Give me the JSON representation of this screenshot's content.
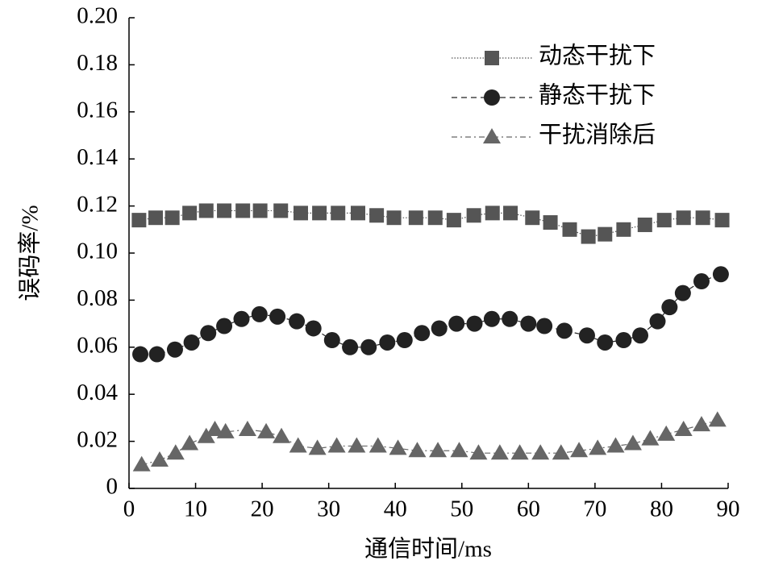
{
  "chart_data": {
    "type": "line",
    "xlabel": "通信时间/ms",
    "ylabel": "误码率/%",
    "xlim": [
      0,
      90
    ],
    "xticks": [
      0,
      10,
      20,
      30,
      40,
      50,
      60,
      70,
      80,
      90
    ],
    "ylim": [
      0,
      0.2
    ],
    "yticks": [
      0,
      0.02,
      0.04,
      0.06,
      0.08,
      {
        "value": 0.1,
        "label": "0.10"
      },
      0.12,
      0.14,
      0.16,
      0.18,
      {
        "value": 0.2,
        "label": "0.20"
      }
    ],
    "legend": "upper right",
    "series": [
      {
        "name": "动态干扰下",
        "color": "#555555",
        "marker": "square",
        "dash": "dotted",
        "x": [
          1.5,
          4,
          6.5,
          9.1,
          11.6,
          14.3,
          17.1,
          19.7,
          22.8,
          25.8,
          28.6,
          31.4,
          34.4,
          37.2,
          39.8,
          43.1,
          46,
          48.8,
          51.8,
          54.6,
          57.3,
          60.6,
          63.3,
          66.2,
          69,
          71.5,
          74.3,
          77.5,
          80.4,
          83.3,
          86.2,
          89.1
        ],
        "values": [
          0.114,
          0.115,
          0.115,
          0.117,
          0.118,
          0.118,
          0.118,
          0.118,
          0.118,
          0.117,
          0.117,
          0.117,
          0.117,
          0.116,
          0.115,
          0.115,
          0.115,
          0.114,
          0.116,
          0.117,
          0.117,
          0.115,
          0.113,
          0.11,
          0.107,
          0.108,
          0.11,
          0.112,
          0.114,
          0.115,
          0.115,
          0.114
        ]
      },
      {
        "name": "静态干扰下",
        "color": "#222222",
        "marker": "circle",
        "dash": "dashed",
        "x": [
          1.7,
          4.2,
          6.9,
          9.4,
          11.9,
          14.3,
          16.9,
          19.6,
          22.3,
          25.2,
          27.7,
          30.5,
          33.2,
          36,
          38.8,
          41.4,
          44,
          46.6,
          49.2,
          51.9,
          54.5,
          57.2,
          60,
          62.4,
          65.4,
          68.8,
          71.5,
          74.3,
          76.8,
          79.4,
          81.2,
          83.2,
          86,
          88.9
        ],
        "values": [
          0.057,
          0.057,
          0.059,
          0.062,
          0.066,
          0.069,
          0.072,
          0.074,
          0.073,
          0.071,
          0.068,
          0.063,
          0.06,
          0.06,
          0.062,
          0.063,
          0.066,
          0.068,
          0.07,
          0.07,
          0.072,
          0.072,
          0.07,
          0.069,
          0.067,
          0.065,
          0.062,
          0.063,
          0.065,
          0.071,
          0.077,
          0.083,
          0.088,
          0.091
        ]
      },
      {
        "name": "干扰消除后",
        "color": "#666666",
        "marker": "triangle",
        "dash": "dashdot",
        "x": [
          1.9,
          4.6,
          7,
          9.1,
          11.6,
          12.9,
          14.5,
          17.8,
          20.6,
          22.9,
          25.4,
          28.3,
          31.2,
          34.2,
          37.4,
          40.4,
          43.3,
          46.4,
          49.6,
          52.5,
          55.7,
          58.7,
          61.8,
          64.9,
          67.6,
          70.4,
          73.1,
          75.7,
          78.3,
          80.7,
          83.3,
          86,
          88.4
        ],
        "values": [
          0.01,
          0.012,
          0.015,
          0.019,
          0.022,
          0.025,
          0.024,
          0.025,
          0.024,
          0.022,
          0.018,
          0.017,
          0.018,
          0.018,
          0.018,
          0.017,
          0.016,
          0.016,
          0.016,
          0.015,
          0.015,
          0.015,
          0.015,
          0.015,
          0.016,
          0.017,
          0.018,
          0.019,
          0.021,
          0.023,
          0.025,
          0.027,
          0.029
        ]
      }
    ]
  }
}
